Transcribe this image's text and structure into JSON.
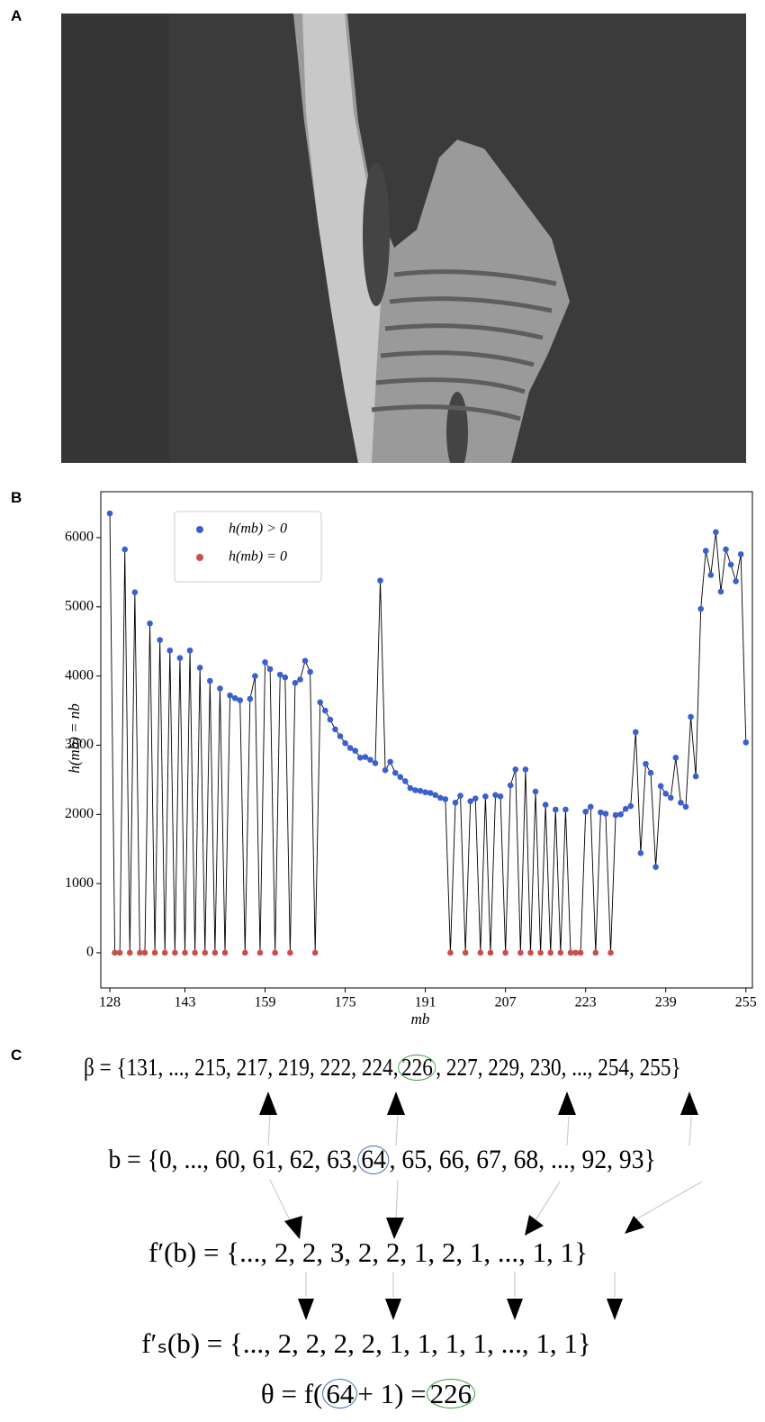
{
  "panel_labels": [
    "A",
    "B",
    "C"
  ],
  "chart_data": {
    "type": "scatter",
    "x_label": "mb",
    "y_label": "h(mb) = nb",
    "x": [
      128,
      129,
      130,
      131,
      132,
      133,
      134,
      135,
      136,
      137,
      138,
      139,
      140,
      141,
      142,
      143,
      144,
      145,
      146,
      147,
      148,
      149,
      150,
      151,
      152,
      153,
      154,
      155,
      156,
      157,
      158,
      159,
      160,
      161,
      162,
      163,
      164,
      165,
      166,
      167,
      168,
      169,
      170,
      171,
      172,
      173,
      174,
      175,
      176,
      177,
      178,
      179,
      180,
      181,
      182,
      183,
      184,
      185,
      186,
      187,
      188,
      189,
      190,
      191,
      192,
      193,
      194,
      195,
      196,
      197,
      198,
      199,
      200,
      201,
      202,
      203,
      204,
      205,
      206,
      207,
      208,
      209,
      210,
      211,
      212,
      213,
      214,
      215,
      216,
      217,
      218,
      219,
      220,
      221,
      222,
      223,
      224,
      225,
      226,
      227,
      228,
      229,
      230,
      231,
      232,
      233,
      234,
      235,
      236,
      237,
      238,
      239,
      240,
      241,
      242,
      243,
      244,
      245,
      246,
      247,
      248,
      249,
      250,
      251,
      252,
      253,
      254,
      255
    ],
    "values": [
      6350,
      0,
      0,
      5830,
      0,
      5210,
      0,
      0,
      4760,
      0,
      4520,
      0,
      4370,
      0,
      4260,
      0,
      4370,
      0,
      4120,
      0,
      3930,
      0,
      3820,
      0,
      3720,
      3680,
      3650,
      0,
      3670,
      4000,
      0,
      4200,
      4100,
      0,
      4020,
      3980,
      0,
      3900,
      3950,
      4220,
      4060,
      0,
      3620,
      3500,
      3370,
      3230,
      3130,
      3030,
      2960,
      2920,
      2820,
      2830,
      2790,
      2740,
      5380,
      2640,
      2760,
      2600,
      2540,
      2480,
      2380,
      2350,
      2340,
      2320,
      2310,
      2280,
      2240,
      2220,
      0,
      2170,
      2270,
      0,
      2190,
      2230,
      0,
      2260,
      0,
      2280,
      2260,
      0,
      2420,
      2650,
      0,
      2650,
      0,
      2330,
      0,
      2140,
      0,
      2070,
      0,
      2070,
      0,
      0,
      0,
      2040,
      2110,
      0,
      2030,
      2010,
      0,
      1990,
      2000,
      2080,
      2120,
      3190,
      1440,
      2730,
      2600,
      1240,
      2410,
      2300,
      2240,
      2820,
      2170,
      2110,
      3410,
      2550,
      4970,
      5810,
      5460,
      6080,
      5220,
      5830,
      5610,
      5370,
      5760,
      3040
    ],
    "line_color": "#000000",
    "legend": [
      {
        "name": "h(mb) > 0",
        "color": "#3b5fcf"
      },
      {
        "name": "h(mb) = 0",
        "color": "#c8504b"
      }
    ],
    "legend_loc": "upper left",
    "xlim": [
      126.2,
      256.3
    ],
    "xticks": [
      128,
      143,
      159,
      175,
      191,
      207,
      223,
      239,
      255
    ],
    "ylim": [
      -508,
      6664
    ],
    "yticks": [
      0,
      1000,
      2000,
      3000,
      4000,
      5000,
      6000
    ]
  },
  "equations": {
    "beta": [
      "β = {131, ..., 215, 217, 219, 222, 224,",
      "226",
      ", 227, 229, 230, ..., 254, 255}"
    ],
    "b": [
      "b = {0, ..., 60, 61, 62, 63,",
      "64",
      ", 65, 66, 67, 68, ..., 92, 93}"
    ],
    "f_prime": "f′(b) = {..., 2, 2, 3, 2, 2, 1, 2, 1, ..., 1, 1}",
    "fs_prime": "f′ₛ(b) = {..., 2, 2, 2, 2, 1, 1, 1, 1, ..., 1, 1}",
    "theta": [
      "θ = f(",
      "64",
      "+ 1) =",
      "226"
    ]
  }
}
